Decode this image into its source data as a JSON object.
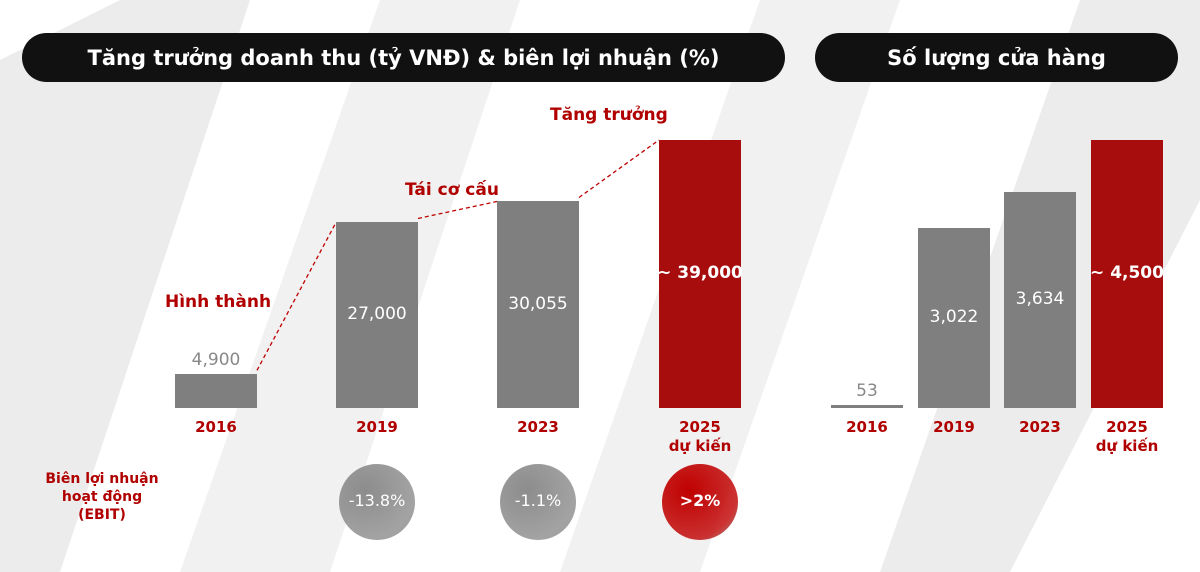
{
  "chart_data": [
    {
      "type": "bar",
      "title": "Tăng trưởng doanh thu (tỷ VNĐ) & biên lợi nhuận (%)",
      "categories": [
        "2016",
        "2019",
        "2023",
        "2025\ndự kiến"
      ],
      "values": [
        4900,
        27000,
        30055,
        39000
      ],
      "value_labels": [
        "4,900",
        "27,000",
        "30,055",
        "~ 39,000"
      ],
      "colors": [
        "#7f7f7f",
        "#7f7f7f",
        "#7f7f7f",
        "#a80d0d"
      ],
      "annotations": [
        "Hình thành",
        "Tái cơ cấu",
        "Tăng trưởng"
      ],
      "margin": {
        "label": "Biên lợi nhuận hoạt động (EBIT)",
        "values": [
          null,
          -13.8,
          -1.1,
          2
        ],
        "value_labels": [
          null,
          "-13.8%",
          "-1.1%",
          ">2%"
        ],
        "colors": [
          null,
          "#8c8c8c",
          "#8c8c8c",
          "#c00000"
        ]
      }
    },
    {
      "type": "bar",
      "title": "Số lượng cửa hàng",
      "categories": [
        "2016",
        "2019",
        "2023",
        "2025\ndự kiến"
      ],
      "values": [
        53,
        3022,
        3634,
        4500
      ],
      "value_labels": [
        "53",
        "3,022",
        "3,634",
        "~ 4,500"
      ],
      "colors": [
        "#7f7f7f",
        "#7f7f7f",
        "#7f7f7f",
        "#a80d0d"
      ]
    }
  ]
}
